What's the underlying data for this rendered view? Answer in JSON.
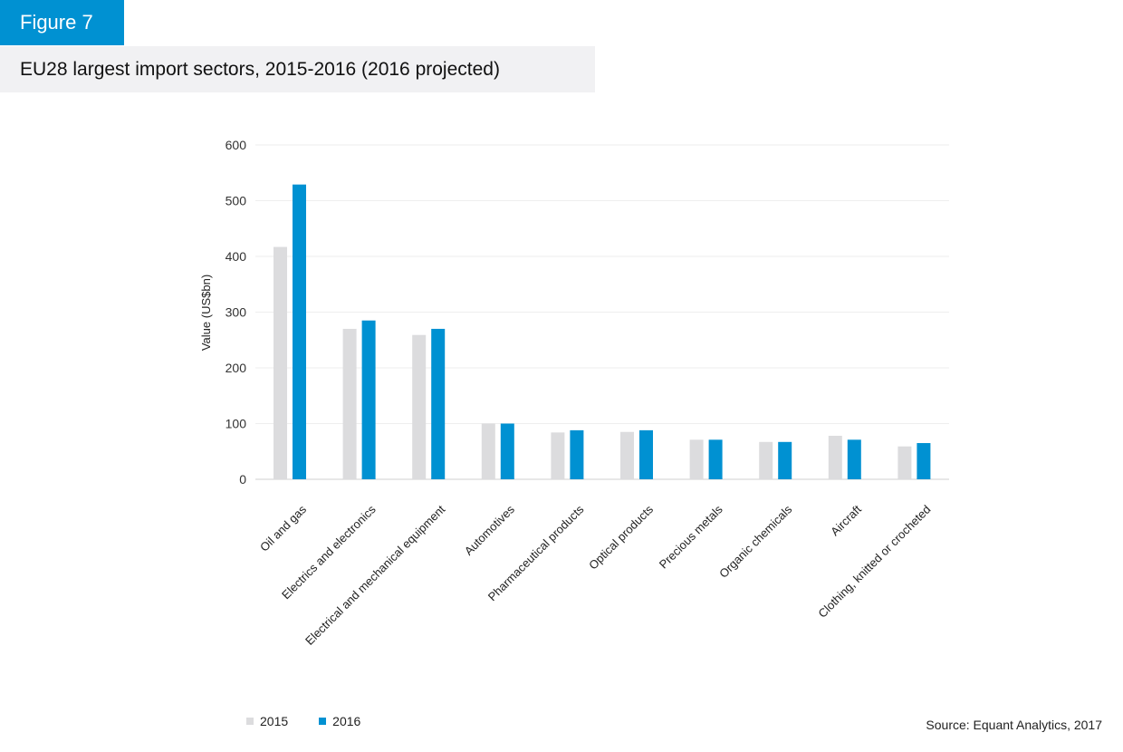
{
  "figure_label": "Figure 7",
  "title": "EU28 largest import sectors, 2015-2016 (2016 projected)",
  "source": "Source: Equant Analytics, 2017",
  "colors": {
    "series_2015": "#dcdcde",
    "series_2016": "#0091d2",
    "accent": "#0091d2"
  },
  "legend": [
    {
      "label": "2015",
      "color": "#dcdcde"
    },
    {
      "label": "2016",
      "color": "#0091d2"
    }
  ],
  "chart_data": {
    "type": "bar",
    "ylabel": "Value (US$bn)",
    "xlabel": "",
    "ylim": [
      0,
      600
    ],
    "yticks": [
      0,
      100,
      200,
      300,
      400,
      500,
      600
    ],
    "grid": true,
    "legend_position": "bottom-left",
    "categories": [
      "Oil and gas",
      "Electrics and electronics",
      "Electrical and mechanical equipment",
      "Automotives",
      "Pharmaceutical products",
      "Optical products",
      "Precious metals",
      "Organic chemicals",
      "Aircraft",
      "Clothing, knitted or crocheted"
    ],
    "series": [
      {
        "name": "2015",
        "values": [
          417,
          270,
          259,
          100,
          84,
          85,
          71,
          67,
          78,
          59
        ]
      },
      {
        "name": "2016",
        "values": [
          529,
          285,
          270,
          100,
          88,
          88,
          71,
          67,
          71,
          65
        ]
      }
    ]
  }
}
